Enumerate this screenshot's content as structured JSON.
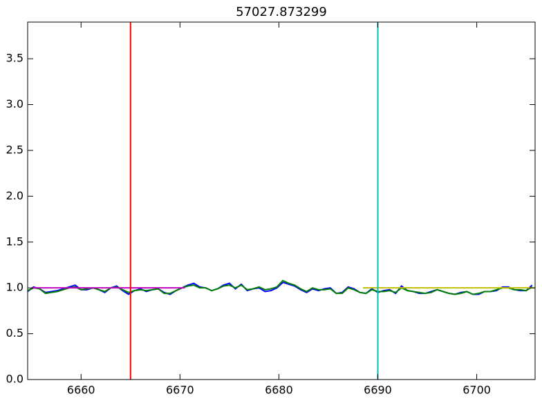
{
  "chart_data": {
    "type": "line",
    "title": "57027.873299",
    "x": [
      6654.6,
      6655.2,
      6655.8,
      6656.4,
      6657.0,
      6657.6,
      6658.2,
      6658.8,
      6659.4,
      6660.0,
      6660.6,
      6661.2,
      6661.8,
      6662.4,
      6663.0,
      6663.6,
      6664.2,
      6664.8,
      6665.4,
      6666.0,
      6666.6,
      6667.2,
      6667.8,
      6668.4,
      6669.0,
      6669.6,
      6670.2,
      6670.8,
      6671.4,
      6672.0,
      6672.6,
      6673.2,
      6673.8,
      6674.4,
      6675.0,
      6675.6,
      6676.2,
      6676.8,
      6677.4,
      6678.0,
      6678.6,
      6679.2,
      6679.8,
      6680.4,
      6681.0,
      6681.6,
      6682.2,
      6682.8,
      6683.4,
      6684.0,
      6684.6,
      6685.2,
      6685.8,
      6686.4,
      6687.0,
      6687.6,
      6688.2,
      6688.8,
      6689.4,
      6690.0,
      6690.6,
      6691.2,
      6691.8,
      6692.4,
      6693.0,
      6693.6,
      6694.2,
      6694.8,
      6695.4,
      6696.0,
      6696.6,
      6697.2,
      6697.8,
      6698.4,
      6699.0,
      6699.6,
      6700.2,
      6700.8,
      6701.4,
      6702.0,
      6702.6,
      6703.2,
      6703.8,
      6704.4,
      6705.0,
      6705.6
    ],
    "series": [
      {
        "color": "#0000ff",
        "values": [
          0.96,
          1.01,
          0.99,
          0.95,
          0.96,
          0.97,
          0.99,
          1.01,
          1.03,
          0.98,
          0.98,
          1.0,
          0.98,
          0.95,
          1.0,
          1.02,
          0.97,
          0.93,
          0.97,
          0.99,
          0.96,
          0.98,
          0.99,
          0.95,
          0.93,
          0.97,
          1.0,
          1.03,
          1.05,
          1.01,
          1.0,
          0.97,
          0.99,
          1.03,
          1.05,
          0.99,
          1.04,
          0.97,
          0.99,
          1.0,
          0.96,
          0.97,
          1.0,
          1.06,
          1.04,
          1.02,
          0.98,
          0.95,
          0.99,
          0.97,
          0.99,
          1.0,
          0.94,
          0.95,
          1.01,
          0.99,
          0.95,
          0.94,
          0.99,
          0.95,
          0.97,
          0.98,
          0.94,
          1.02,
          0.97,
          0.96,
          0.94,
          0.94,
          0.96,
          0.98,
          0.96,
          0.94,
          0.93,
          0.95,
          0.96,
          0.93,
          0.93,
          0.96,
          0.96,
          0.97,
          1.01,
          1.01,
          0.98,
          0.97,
          0.97,
          1.03
        ]
      },
      {
        "color": "#008000",
        "values": [
          0.97,
          1.0,
          0.99,
          0.94,
          0.95,
          0.96,
          0.98,
          1.0,
          1.01,
          0.98,
          0.99,
          1.0,
          0.98,
          0.96,
          1.0,
          1.01,
          0.98,
          0.95,
          0.97,
          0.98,
          0.97,
          0.98,
          0.99,
          0.94,
          0.94,
          0.97,
          1.0,
          1.02,
          1.03,
          1.0,
          1.0,
          0.97,
          0.99,
          1.02,
          1.03,
          1.0,
          1.03,
          0.98,
          0.99,
          1.01,
          0.98,
          0.99,
          1.01,
          1.08,
          1.05,
          1.03,
          0.99,
          0.96,
          1.0,
          0.98,
          0.98,
          0.99,
          0.94,
          0.94,
          1.0,
          0.98,
          0.95,
          0.94,
          0.98,
          0.96,
          0.96,
          0.97,
          0.95,
          1.0,
          0.97,
          0.96,
          0.95,
          0.94,
          0.95,
          0.98,
          0.96,
          0.94,
          0.93,
          0.94,
          0.96,
          0.93,
          0.94,
          0.96,
          0.96,
          0.98,
          1.0,
          1.0,
          0.98,
          0.98,
          0.97,
          1.01
        ]
      }
    ],
    "vlines": [
      {
        "x": 6665,
        "color": "#ff0000"
      },
      {
        "x": 6690,
        "color": "#00bfbf"
      }
    ],
    "hlines": [
      {
        "y": 1.0,
        "xmin": 6655,
        "xmax": 6670.5,
        "color": "#bf00bf"
      },
      {
        "y": 1.0,
        "xmin": 6688.5,
        "xmax": 6705.9,
        "color": "#bfbf00"
      }
    ],
    "xlim": [
      6654.6,
      6705.9
    ],
    "ylim": [
      0,
      3.9
    ],
    "xticks": [
      6660,
      6670,
      6680,
      6690,
      6700
    ],
    "yticks": [
      {
        "value": 0,
        "label": "0.0"
      },
      0.5,
      {
        "value": 1,
        "label": "1.0"
      },
      1.5,
      {
        "value": 2,
        "label": "2.0"
      },
      2.5,
      {
        "value": 3,
        "label": "3.0"
      },
      3.5
    ],
    "grid": false
  }
}
